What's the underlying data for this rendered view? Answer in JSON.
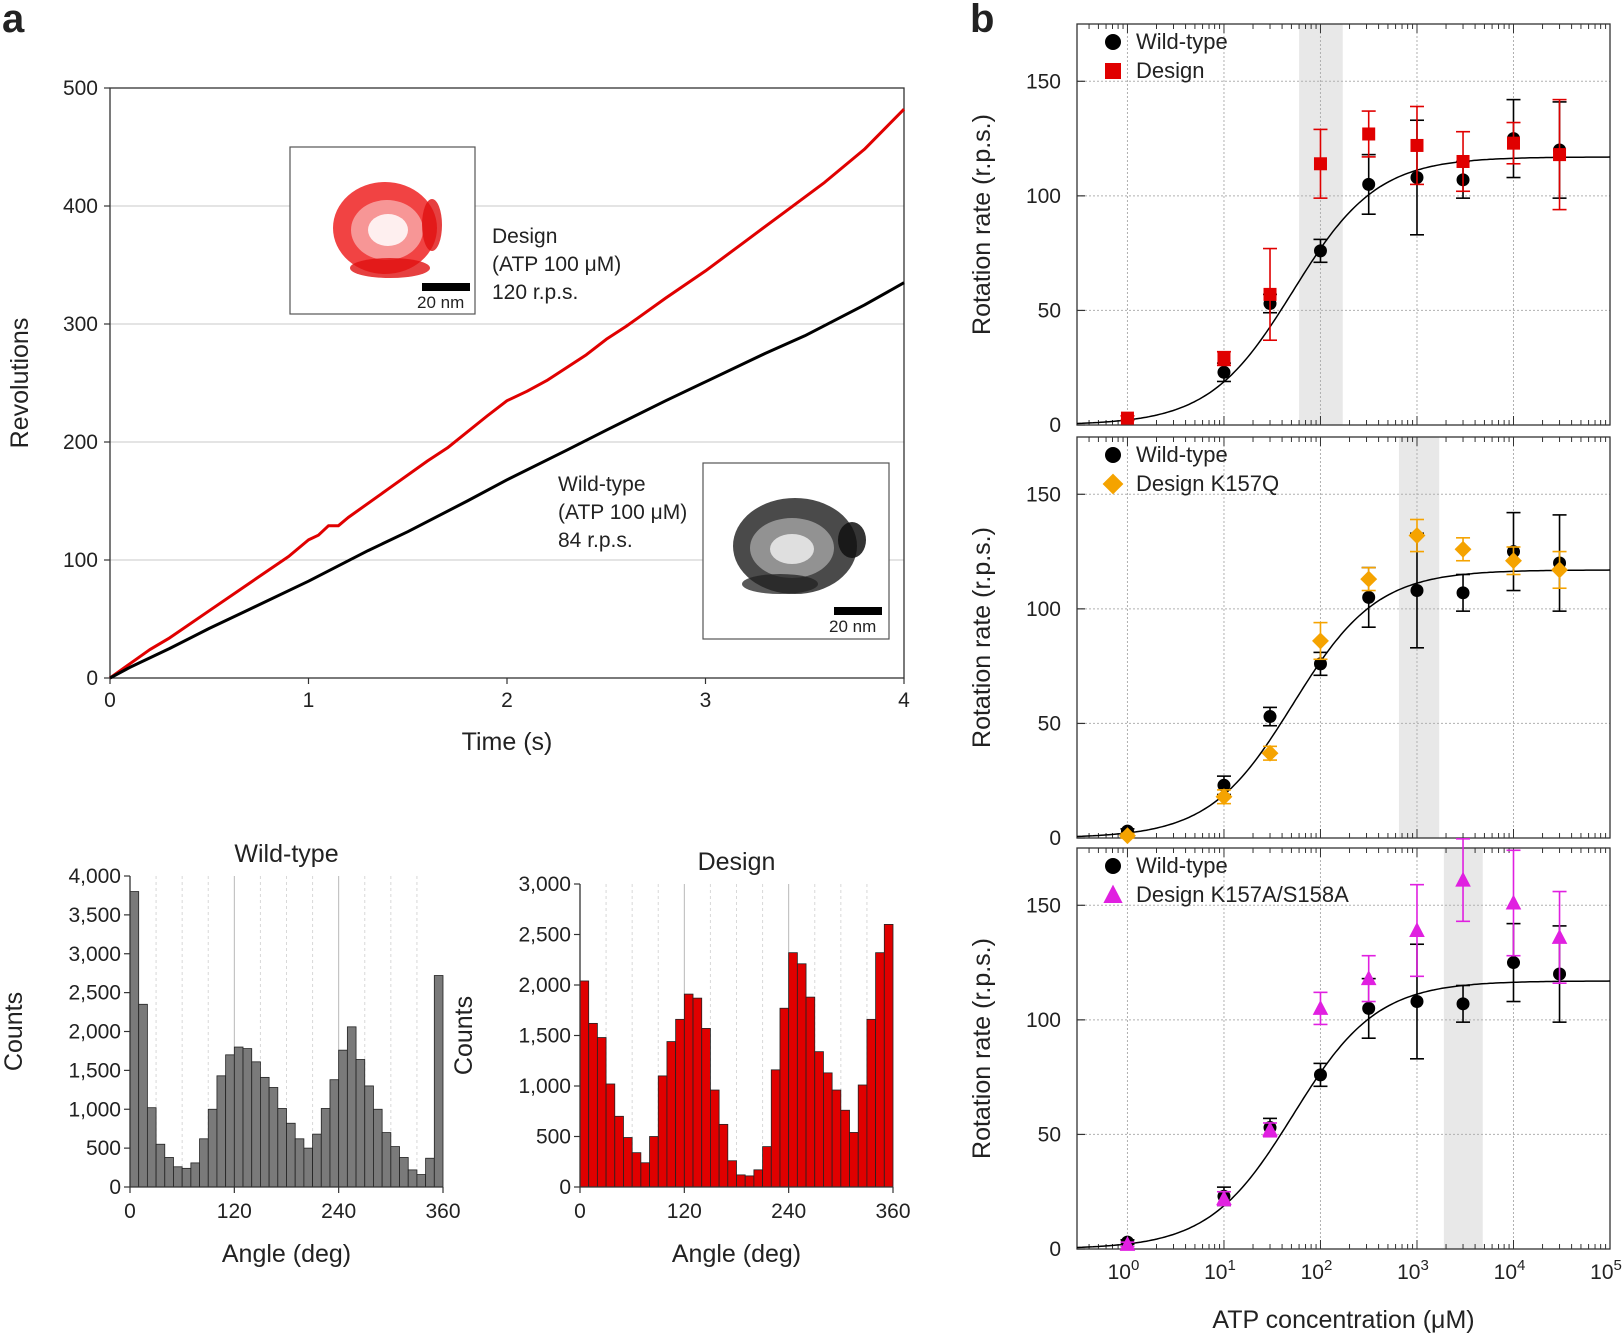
{
  "panel_labels": {
    "a": "a",
    "b": "b"
  },
  "colors": {
    "wildtype": "#000000",
    "design": "#e00000",
    "k157q": "#f5a300",
    "k157a": "#e020e0",
    "hist_wt": "#7a7a7a",
    "hist_design": "#e00000",
    "shade": "#e6e6e6"
  },
  "annotations": {
    "design": {
      "line1": "Design",
      "line2": "(ATP 100 μM)",
      "line3": "120 r.p.s.",
      "scalebar": "20 nm"
    },
    "wildtype": {
      "line1": "Wild-type",
      "line2": "(ATP 100 μM)",
      "line3": "84 r.p.s.",
      "scalebar": "20 nm"
    }
  },
  "chart_data": [
    {
      "id": "revolutions",
      "type": "line",
      "xlabel": "Time (s)",
      "ylabel": "Revolutions",
      "xlim": [
        0,
        4
      ],
      "ylim": [
        0,
        500
      ],
      "xticks": [
        0,
        1,
        2,
        3,
        4
      ],
      "yticks": [
        0,
        100,
        200,
        300,
        400,
        500
      ],
      "series": [
        {
          "name": "Design",
          "color": "#e00000",
          "rate": 120,
          "x": [
            0,
            0.1,
            0.2,
            0.3,
            0.5,
            0.7,
            0.9,
            1.0,
            1.05,
            1.1,
            1.15,
            1.2,
            1.4,
            1.6,
            1.7,
            1.9,
            2.0,
            2.1,
            2.2,
            2.4,
            2.5,
            2.6,
            2.8,
            3.0,
            3.2,
            3.4,
            3.6,
            3.8,
            4.0
          ],
          "y": [
            0,
            12,
            24,
            34,
            57,
            80,
            103,
            117,
            121,
            129,
            129,
            136,
            160,
            184,
            195,
            222,
            235,
            243,
            252,
            274,
            287,
            298,
            322,
            345,
            370,
            395,
            420,
            448,
            482
          ]
        },
        {
          "name": "Wild-type",
          "color": "#000000",
          "rate": 84,
          "x": [
            0,
            0.1,
            0.3,
            0.5,
            0.7,
            1.0,
            1.3,
            1.5,
            1.8,
            2.0,
            2.3,
            2.5,
            2.8,
            3.0,
            3.3,
            3.5,
            3.8,
            4.0
          ],
          "y": [
            0,
            9,
            25,
            42,
            58,
            82,
            108,
            124,
            150,
            168,
            193,
            210,
            235,
            251,
            275,
            290,
            316,
            335
          ]
        }
      ]
    },
    {
      "id": "hist_wildtype",
      "type": "bar",
      "title": "Wild-type",
      "xlabel": "Angle (deg)",
      "ylabel": "Counts",
      "xlim": [
        0,
        360
      ],
      "ylim": [
        0,
        4000
      ],
      "xticks": [
        0,
        120,
        240,
        360
      ],
      "yticks": [
        0,
        500,
        1000,
        1500,
        2000,
        2500,
        3000,
        3500,
        4000
      ],
      "ytick_labels": [
        "0",
        "500",
        "1,000",
        "1,500",
        "2,000",
        "2,500",
        "3,000",
        "3,500",
        "4,000"
      ],
      "bin_width": 10,
      "values": [
        3800,
        2350,
        1020,
        550,
        380,
        260,
        240,
        310,
        620,
        1000,
        1430,
        1700,
        1800,
        1780,
        1610,
        1410,
        1280,
        1010,
        820,
        620,
        500,
        680,
        1010,
        1380,
        1760,
        2060,
        1640,
        1300,
        1000,
        700,
        520,
        380,
        220,
        160,
        370,
        2720
      ]
    },
    {
      "id": "hist_design",
      "type": "bar",
      "title": "Design",
      "xlabel": "Angle (deg)",
      "ylabel": "Counts",
      "xlim": [
        0,
        360
      ],
      "ylim": [
        0,
        3000
      ],
      "xticks": [
        0,
        120,
        240,
        360
      ],
      "yticks": [
        0,
        500,
        1000,
        1500,
        2000,
        2500,
        3000
      ],
      "ytick_labels": [
        "0",
        "500",
        "1,000",
        "1,500",
        "2,000",
        "2,500",
        "3,000"
      ],
      "bin_width": 10,
      "values": [
        2040,
        1620,
        1480,
        1020,
        700,
        490,
        340,
        240,
        500,
        1100,
        1440,
        1660,
        1910,
        1870,
        1570,
        960,
        620,
        260,
        120,
        110,
        170,
        400,
        1160,
        1770,
        2320,
        2210,
        1880,
        1340,
        1130,
        960,
        760,
        540,
        1010,
        1660,
        2320,
        2600
      ]
    },
    {
      "id": "rate_design",
      "type": "scatter",
      "ylabel": "Rotation rate (r.p.s.)",
      "xscale": "log",
      "xlim": [
        0.3,
        100000
      ],
      "ylim": [
        0,
        175
      ],
      "yticks": [
        0,
        50,
        100,
        150
      ],
      "shade": [
        60,
        170
      ],
      "fit": {
        "vmax": 117,
        "km": 52
      },
      "series": [
        {
          "name": "Wild-type",
          "marker": "circle",
          "color": "#000000",
          "x": [
            10,
            30,
            100,
            316,
            1000,
            3000,
            10000,
            30000
          ],
          "y": [
            23,
            53,
            76,
            105,
            108,
            107,
            125,
            120
          ],
          "err": [
            4,
            4,
            5,
            13,
            25,
            8,
            17,
            21
          ]
        },
        {
          "name": "Design",
          "marker": "square",
          "color": "#e00000",
          "x": [
            1,
            10,
            30,
            100,
            316,
            1000,
            3000,
            10000,
            30000
          ],
          "y": [
            3,
            29,
            57,
            114,
            127,
            122,
            115,
            123,
            118
          ],
          "err": [
            1,
            3,
            20,
            15,
            10,
            17,
            13,
            9,
            24
          ]
        }
      ]
    },
    {
      "id": "rate_k157q",
      "type": "scatter",
      "ylabel": "Rotation rate (r.p.s.)",
      "xscale": "log",
      "xlim": [
        0.3,
        100000
      ],
      "ylim": [
        0,
        175
      ],
      "yticks": [
        0,
        50,
        100,
        150
      ],
      "shade": [
        650,
        1700
      ],
      "fit": {
        "vmax": 117,
        "km": 52
      },
      "series": [
        {
          "name": "Wild-type",
          "marker": "circle",
          "color": "#000000",
          "x": [
            1,
            10,
            30,
            100,
            316,
            1000,
            3000,
            10000,
            30000
          ],
          "y": [
            3,
            23,
            53,
            76,
            105,
            108,
            107,
            125,
            120
          ],
          "err": [
            1,
            4,
            4,
            5,
            13,
            25,
            8,
            17,
            21
          ]
        },
        {
          "name": "Design K157Q",
          "marker": "diamond",
          "color": "#f5a300",
          "x": [
            1,
            10,
            30,
            100,
            316,
            1000,
            3000,
            10000,
            30000
          ],
          "y": [
            1,
            18,
            37,
            86,
            113,
            132,
            126,
            121,
            117
          ],
          "err": [
            1,
            3,
            3,
            8,
            5,
            7,
            5,
            6,
            8
          ]
        }
      ]
    },
    {
      "id": "rate_k157a",
      "type": "scatter",
      "ylabel": "Rotation rate (r.p.s.)",
      "xlabel": "ATP concentration (μM)",
      "xscale": "log",
      "xlim": [
        0.3,
        100000
      ],
      "ylim": [
        0,
        175
      ],
      "yticks": [
        0,
        50,
        100,
        150
      ],
      "xticks": [
        1,
        10,
        100,
        1000,
        10000,
        100000
      ],
      "xtick_labels": [
        {
          "base": "10",
          "exp": "0"
        },
        {
          "base": "10",
          "exp": "1"
        },
        {
          "base": "10",
          "exp": "2"
        },
        {
          "base": "10",
          "exp": "3"
        },
        {
          "base": "10",
          "exp": "4"
        },
        {
          "base": "10",
          "exp": "5"
        }
      ],
      "shade": [
        1900,
        4800
      ],
      "fit": {
        "vmax": 117,
        "km": 52
      },
      "series": [
        {
          "name": "Wild-type",
          "marker": "circle",
          "color": "#000000",
          "x": [
            1,
            10,
            30,
            100,
            316,
            1000,
            3000,
            10000,
            30000
          ],
          "y": [
            3,
            23,
            53,
            76,
            105,
            108,
            107,
            125,
            120
          ],
          "err": [
            1,
            4,
            4,
            5,
            13,
            25,
            8,
            17,
            21
          ]
        },
        {
          "name": "Design K157A/S158A",
          "marker": "triangle",
          "color": "#e020e0",
          "x": [
            1,
            10,
            30,
            100,
            316,
            1000,
            3000,
            10000,
            30000
          ],
          "y": [
            2,
            22,
            52,
            105,
            118,
            139,
            161,
            151,
            136
          ],
          "err": [
            1,
            3,
            3,
            7,
            10,
            20,
            18,
            23,
            20
          ]
        }
      ]
    }
  ]
}
